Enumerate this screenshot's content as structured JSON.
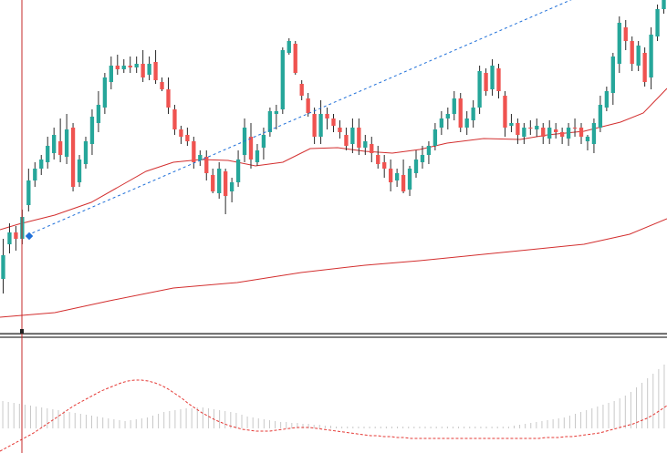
{
  "colors": {
    "background": "#ffffff",
    "grid": "#c8c8c8",
    "bull": "#26a69a",
    "bear": "#ef5350",
    "wick": "#2a2a2a",
    "ma": "#d32f2f",
    "trendline": "#1e6fd9",
    "crosshair": "#c62828",
    "histogram": "#c8c8c8",
    "signal": "#e53935",
    "separator": "#000000"
  },
  "chart_data": {
    "type": "candlestick",
    "title": "",
    "grid": true,
    "price": {
      "ylim": [
        0,
        370
      ],
      "candles": [
        [
          306,
          280,
          322,
          262
        ],
        [
          268,
          255,
          278,
          245
        ],
        [
          255,
          262,
          275,
          248
        ],
        [
          262,
          238,
          268,
          230
        ],
        [
          225,
          198,
          232,
          185
        ],
        [
          198,
          185,
          205,
          178
        ],
        [
          185,
          175,
          192,
          170
        ],
        [
          178,
          160,
          185,
          150
        ],
        [
          168,
          148,
          175,
          140
        ],
        [
          155,
          170,
          178,
          130
        ],
        [
          172,
          142,
          180,
          125
        ],
        [
          140,
          205,
          210,
          135
        ],
        [
          200,
          175,
          205,
          170
        ],
        [
          180,
          155,
          185,
          150
        ],
        [
          158,
          128,
          170,
          120
        ],
        [
          135,
          115,
          145,
          100
        ],
        [
          118,
          85,
          125,
          80
        ],
        [
          90,
          72,
          98,
          62
        ],
        [
          72,
          76,
          82,
          60
        ],
        [
          76,
          72,
          80,
          65
        ],
        [
          72,
          74,
          80,
          62
        ],
        [
          74,
          70,
          80,
          62
        ],
        [
          70,
          85,
          90,
          55
        ],
        [
          82,
          70,
          88,
          62
        ],
        [
          68,
          88,
          92,
          55
        ],
        [
          90,
          98,
          100,
          85
        ],
        [
          98,
          118,
          125,
          85
        ],
        [
          120,
          142,
          148,
          115
        ],
        [
          142,
          150,
          158,
          138
        ],
        [
          148,
          155,
          160,
          140
        ],
        [
          155,
          178,
          185,
          150
        ],
        [
          176,
          170,
          182,
          165
        ],
        [
          172,
          190,
          198,
          165
        ],
        [
          192,
          210,
          212,
          185
        ],
        [
          212,
          185,
          218,
          178
        ],
        [
          188,
          215,
          235,
          185
        ],
        [
          210,
          200,
          222,
          195
        ],
        [
          200,
          175,
          205,
          165
        ],
        [
          170,
          140,
          178,
          130
        ],
        [
          150,
          175,
          185,
          135
        ],
        [
          178,
          165,
          182,
          158
        ],
        [
          162,
          148,
          175,
          140
        ],
        [
          145,
          122,
          150,
          118
        ],
        [
          125,
          122,
          142,
          115
        ],
        [
          120,
          55,
          125,
          52
        ],
        [
          58,
          45,
          60,
          42
        ],
        [
          48,
          80,
          82,
          45
        ],
        [
          92,
          105,
          110,
          88
        ],
        [
          108,
          124,
          128,
          102
        ],
        [
          125,
          150,
          158,
          118
        ],
        [
          150,
          125,
          158,
          110
        ],
        [
          125,
          130,
          142,
          118
        ],
        [
          130,
          138,
          145,
          125
        ],
        [
          140,
          145,
          152,
          132
        ],
        [
          148,
          160,
          165,
          140
        ],
        [
          158,
          140,
          168,
          130
        ],
        [
          140,
          162,
          170,
          130
        ],
        [
          162,
          155,
          170,
          148
        ],
        [
          158,
          168,
          178,
          150
        ],
        [
          170,
          180,
          185,
          160
        ],
        [
          178,
          185,
          195,
          170
        ],
        [
          185,
          200,
          210,
          175
        ],
        [
          198,
          190,
          205,
          185
        ],
        [
          192,
          210,
          212,
          175
        ],
        [
          208,
          185,
          215,
          182
        ],
        [
          190,
          175,
          195,
          165
        ],
        [
          178,
          170,
          185,
          160
        ],
        [
          170,
          160,
          180,
          155
        ],
        [
          160,
          142,
          165,
          135
        ],
        [
          140,
          130,
          148,
          122
        ],
        [
          130,
          125,
          142,
          118
        ],
        [
          125,
          108,
          132,
          100
        ],
        [
          108,
          140,
          145,
          102
        ],
        [
          140,
          130,
          148,
          122
        ],
        [
          132,
          118,
          140,
          110
        ],
        [
          118,
          78,
          125,
          72
        ],
        [
          80,
          100,
          105,
          75
        ],
        [
          98,
          72,
          105,
          65
        ],
        [
          75,
          100,
          108,
          70
        ],
        [
          105,
          140,
          150,
          100
        ],
        [
          138,
          135,
          145,
          125
        ],
        [
          135,
          148,
          158,
          130
        ],
        [
          150,
          140,
          158,
          135
        ],
        [
          140,
          140,
          148,
          132
        ],
        [
          142,
          138,
          150,
          130
        ],
        [
          140,
          150,
          158,
          135
        ],
        [
          152,
          140,
          158,
          132
        ],
        [
          142,
          145,
          152,
          135
        ],
        [
          145,
          150,
          158,
          140
        ],
        [
          152,
          140,
          160,
          135
        ],
        [
          140,
          140,
          150,
          130
        ],
        [
          140,
          150,
          158,
          135
        ],
        [
          155,
          150,
          165,
          148
        ],
        [
          158,
          135,
          168,
          130
        ],
        [
          140,
          115,
          145,
          105
        ],
        [
          118,
          100,
          122,
          95
        ],
        [
          102,
          62,
          115,
          58
        ],
        [
          70,
          25,
          80,
          18
        ],
        [
          30,
          45,
          55,
          22
        ],
        [
          45,
          70,
          78,
          40
        ],
        [
          72,
          50,
          78,
          45
        ],
        [
          58,
          90,
          95,
          52
        ],
        [
          85,
          38,
          98,
          30
        ],
        [
          40,
          10,
          45,
          5
        ],
        [
          10,
          -20,
          15,
          -30
        ]
      ],
      "moving_average_fast": [
        [
          0,
          252
        ],
        [
          20,
          246
        ],
        [
          60,
          236
        ],
        [
          100,
          222
        ],
        [
          130,
          205
        ],
        [
          160,
          188
        ],
        [
          190,
          178
        ],
        [
          220,
          175
        ],
        [
          250,
          176
        ],
        [
          280,
          182
        ],
        [
          310,
          178
        ],
        [
          340,
          163
        ],
        [
          370,
          162
        ],
        [
          400,
          166
        ],
        [
          430,
          168
        ],
        [
          460,
          164
        ],
        [
          490,
          157
        ],
        [
          530,
          152
        ],
        [
          570,
          153
        ],
        [
          600,
          148
        ],
        [
          640,
          144
        ],
        [
          680,
          134
        ],
        [
          705,
          124
        ],
        [
          731,
          97
        ]
      ],
      "moving_average_slow": [
        [
          0,
          348
        ],
        [
          60,
          343
        ],
        [
          120,
          330
        ],
        [
          190,
          316
        ],
        [
          260,
          310
        ],
        [
          330,
          299
        ],
        [
          400,
          291
        ],
        [
          460,
          286
        ],
        [
          520,
          280
        ],
        [
          580,
          274
        ],
        [
          640,
          268
        ],
        [
          690,
          257
        ],
        [
          731,
          240
        ]
      ],
      "trendline": {
        "from": [
          30,
          258
        ],
        "to": [
          630,
          -2
        ]
      },
      "crosshair_x": 24,
      "marker": [
        32,
        259
      ]
    },
    "oscillator": {
      "histogram": [
        30,
        29,
        28,
        27,
        26,
        25,
        24,
        23,
        22,
        21,
        20,
        19,
        18,
        17,
        16,
        15,
        14,
        13,
        12,
        11,
        10,
        9,
        8,
        9,
        10,
        11,
        12,
        14,
        16,
        18,
        19,
        20,
        21,
        22,
        22,
        23,
        23,
        22,
        21,
        20,
        19,
        18,
        17,
        15,
        13,
        12,
        11,
        10,
        9,
        8,
        7,
        7,
        6,
        6,
        5,
        5,
        4,
        4,
        3,
        3,
        2,
        2,
        2,
        2,
        2,
        2,
        2,
        2,
        2,
        2,
        2,
        2,
        2,
        2,
        2,
        2,
        2,
        2,
        2,
        2,
        2,
        2,
        2,
        2,
        2,
        2,
        2,
        2,
        2,
        2,
        2,
        2,
        3,
        4,
        5,
        6,
        7,
        8,
        9,
        10,
        11,
        12,
        14,
        16,
        18,
        20,
        22,
        24,
        26,
        28,
        30,
        33,
        36,
        40,
        45,
        50,
        55,
        60,
        65,
        70
      ],
      "signal": [
        0,
        4,
        8,
        12,
        16,
        20,
        25,
        30,
        35,
        40,
        45,
        50,
        54,
        58,
        62,
        66,
        69,
        72,
        75,
        77,
        78,
        78,
        77,
        75,
        72,
        68,
        63,
        58,
        52,
        47,
        42,
        38,
        34,
        31,
        28,
        26,
        24,
        23,
        22,
        22,
        22,
        23,
        24,
        25,
        26,
        26,
        26,
        25,
        24,
        23,
        22,
        21,
        20,
        19,
        18,
        17,
        17,
        16,
        16,
        15,
        15,
        14,
        14,
        14,
        14,
        14,
        14,
        14,
        14,
        14,
        14,
        14,
        14,
        14,
        14,
        14,
        14,
        14,
        14,
        14,
        14,
        15,
        15,
        15,
        16,
        16,
        17,
        18,
        19,
        20,
        22,
        24,
        26,
        28,
        30,
        33,
        36,
        40,
        45,
        50
      ]
    }
  }
}
